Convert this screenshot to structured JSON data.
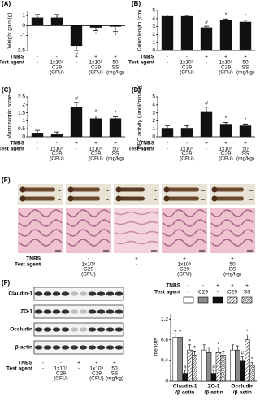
{
  "panel_labels": [
    "(A)",
    "(B)",
    "(C)",
    "(D)",
    "(E)",
    "(F)"
  ],
  "conditions": {
    "tnbs_label": "TNBS",
    "agent_label": "Test agent",
    "tnbs": [
      "-",
      "-",
      "+",
      "+",
      "+"
    ],
    "agent": [
      [
        "-"
      ],
      [
        "1x10⁹",
        "C29",
        "(CFU)"
      ],
      [
        "-"
      ],
      [
        "1x10⁹",
        "C29",
        "(CFU)"
      ],
      [
        "50",
        "SS",
        "(mg/kg)"
      ]
    ]
  },
  "blot": {
    "proteins": [
      "Claudin-1",
      "ZO-1",
      "Occludin",
      "β-actin"
    ]
  },
  "chart_data": [
    {
      "type": "bar",
      "y_label": "Weight gain (g)",
      "color": "#111111",
      "values": [
        0.8,
        0.8,
        -2.1,
        -0.2,
        -0.1
      ],
      "errors": [
        0.3,
        0.3,
        0.4,
        0.3,
        0.5
      ],
      "markers": [
        null,
        null,
        "#",
        "*",
        "*"
      ],
      "ylim": [
        -2.5,
        1.5
      ],
      "yticks": [
        -2.5,
        -1,
        0,
        1
      ]
    },
    {
      "type": "bar",
      "y_label": "Colon length (cm)",
      "color": "#111111",
      "values": [
        4.3,
        4.3,
        2.9,
        3.8,
        3.6
      ],
      "errors": [
        0.15,
        0.1,
        0.15,
        0.15,
        0.2
      ],
      "markers": [
        null,
        null,
        "#",
        "*",
        "*"
      ],
      "ylim": [
        0,
        5
      ],
      "yticks": [
        0,
        1,
        2,
        3,
        4,
        5
      ]
    },
    {
      "type": "bar",
      "y_label": "Macroscopic score",
      "color": "#111111",
      "values": [
        0.2,
        0.15,
        1.85,
        1.15,
        1.15
      ],
      "errors": [
        0.2,
        0.15,
        0.3,
        0.15,
        0.1
      ],
      "markers": [
        null,
        null,
        "#",
        "*",
        "*"
      ],
      "ylim": [
        0,
        2.5
      ],
      "yticks": [
        0,
        0.5,
        1,
        1.5,
        2,
        2.5
      ]
    },
    {
      "type": "bar",
      "y_label": "MPO activity (μmol/min/mg)",
      "color": "#111111",
      "values": [
        1.1,
        1.1,
        3.2,
        1.6,
        1.4
      ],
      "errors": [
        0.3,
        0.3,
        0.5,
        0.2,
        0.2
      ],
      "markers": [
        null,
        null,
        "#",
        "*",
        "*"
      ],
      "ylim": [
        0,
        5
      ],
      "yticks": [
        0,
        1,
        2,
        3,
        4,
        5
      ]
    },
    {
      "type": "grouped_bar",
      "y_label": "Intensity",
      "categories": [
        [
          "Claudin-1",
          "/β-actin"
        ],
        [
          "ZO-1",
          "/β-actin"
        ],
        [
          "Occludin",
          "/β-actin"
        ]
      ],
      "ylim": [
        0,
        1.3
      ],
      "yticks": [
        0,
        0.4,
        0.8,
        1.2
      ],
      "series": [
        {
          "tnbs": "-",
          "agent": "-",
          "color": "#ffffff",
          "values": [
            0.85,
            0.6,
            0.6
          ],
          "errors": [
            0.12,
            0.1,
            0.1
          ],
          "markers": [
            null,
            null,
            null
          ]
        },
        {
          "tnbs": "-",
          "agent": "C29",
          "color": "#8c8c8c",
          "values": [
            0.85,
            0.55,
            0.6
          ],
          "errors": [
            0.12,
            0.1,
            0.08
          ],
          "markers": [
            null,
            null,
            null
          ]
        },
        {
          "tnbs": "+",
          "agent": "-",
          "color": "#111111",
          "values": [
            0.15,
            0.15,
            0.4
          ],
          "errors": [
            0.05,
            0.05,
            0.08
          ],
          "markers": [
            "#",
            "#",
            "#"
          ]
        },
        {
          "tnbs": "+",
          "agent": "C29",
          "color": "#ffffff",
          "pattern": "diagonal",
          "values": [
            0.6,
            0.55,
            0.8
          ],
          "errors": [
            0.1,
            0.1,
            0.1
          ],
          "markers": [
            "*",
            "*",
            "*"
          ]
        },
        {
          "tnbs": "+",
          "agent": "SS",
          "color": "#ffffff",
          "pattern": "dense",
          "values": [
            0.5,
            0.5,
            0.3
          ],
          "errors": [
            0.08,
            0.08,
            0.06
          ],
          "markers": [
            "*",
            null,
            "*"
          ]
        }
      ]
    }
  ]
}
